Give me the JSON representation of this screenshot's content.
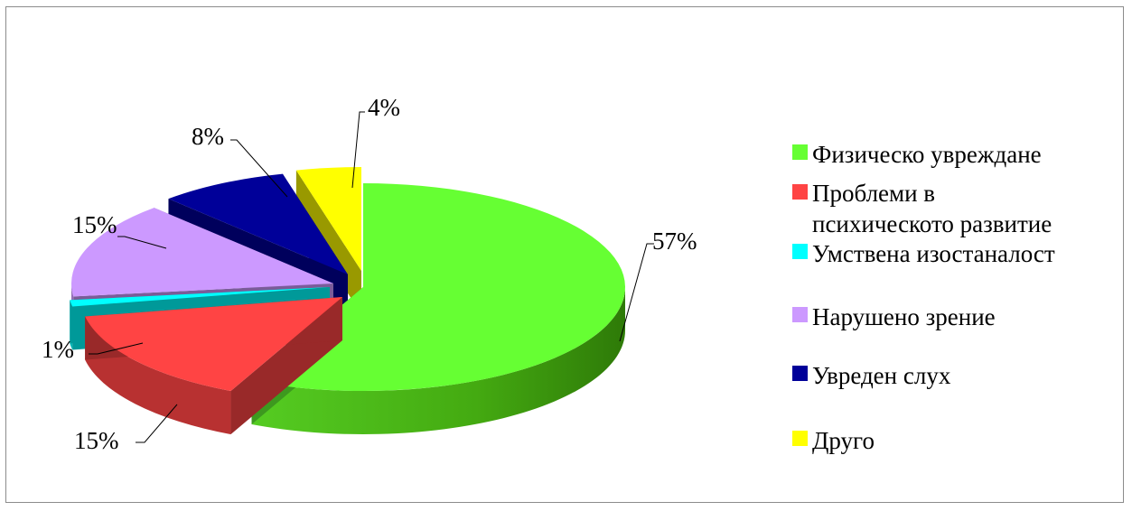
{
  "chart_data": {
    "type": "pie",
    "title": "",
    "legend_position": "right",
    "slices": [
      {
        "label": "Физическо увреждане",
        "value": 57,
        "value_label": "57%",
        "color": "#66ff33"
      },
      {
        "label_lines": [
          "Проблеми в",
          "психическото развитие"
        ],
        "label": "Проблеми в психическото развитие",
        "value": 15,
        "value_label": "15%",
        "color": "#ff4444"
      },
      {
        "label": "Умствена изостаналост",
        "value": 1,
        "value_label": "1%",
        "color": "#00ffff"
      },
      {
        "label": "Нарушено зрение",
        "value": 15,
        "value_label": "15%",
        "color": "#cc99ff"
      },
      {
        "label": "Увреден слух",
        "value": 8,
        "value_label": "8%",
        "color": "#000099"
      },
      {
        "label": "Друго",
        "value": 4,
        "value_label": "4%",
        "color": "#ffff00"
      }
    ]
  }
}
